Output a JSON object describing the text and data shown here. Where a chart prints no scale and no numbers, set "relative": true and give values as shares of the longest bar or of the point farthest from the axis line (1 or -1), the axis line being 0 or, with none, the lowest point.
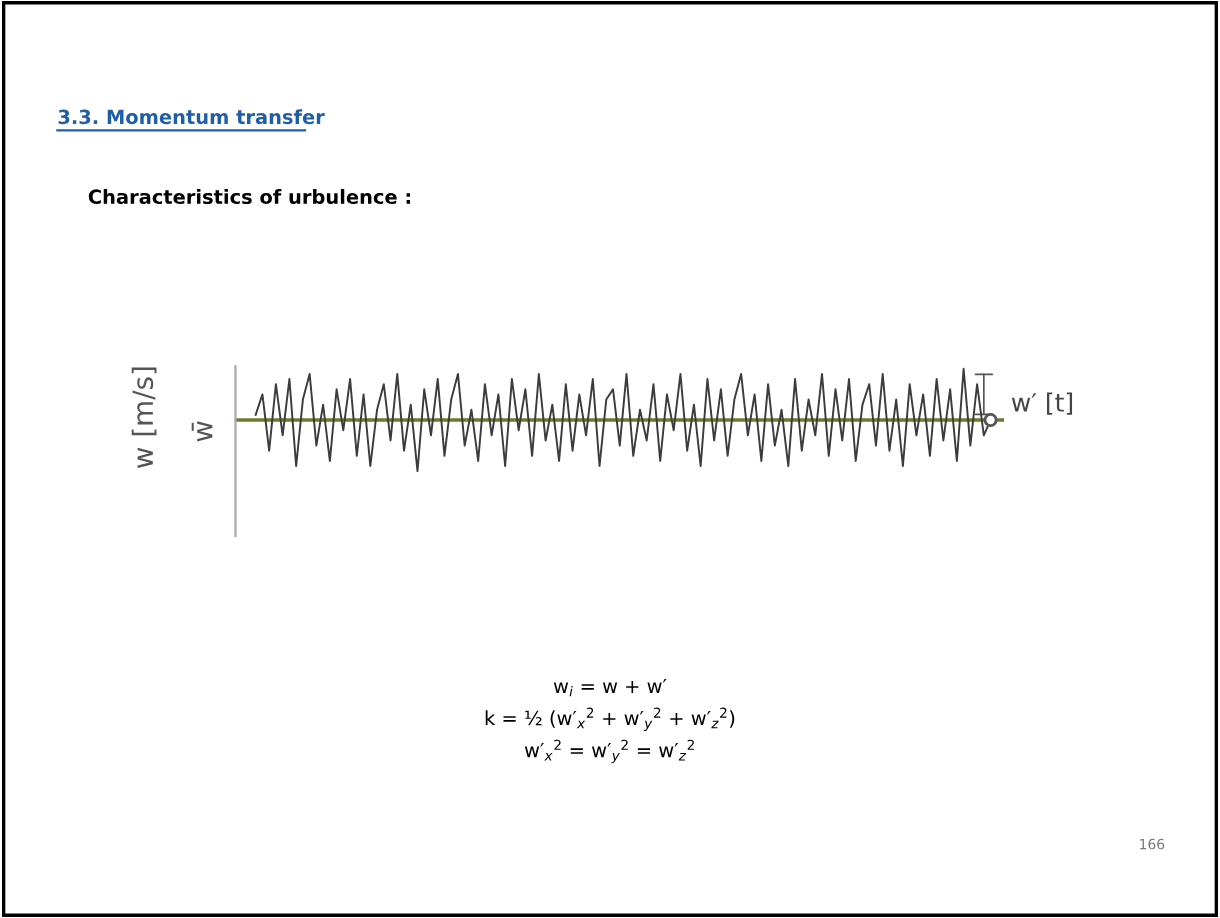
{
  "chart_data": {
    "type": "line",
    "relative": true,
    "title": "3.3. Momentum transfer",
    "subtitle": "Characteristics of urbulence :",
    "ylabel": "w [m/s]",
    "categories": [
      null,
      null,
      null,
      null,
      null,
      null,
      null,
      null,
      null,
      null,
      null,
      null,
      null,
      null,
      null,
      null,
      null,
      null,
      null,
      null,
      null,
      null,
      null,
      null,
      null,
      null,
      null,
      null,
      null,
      null,
      null,
      null,
      null,
      null,
      null,
      null,
      null,
      null,
      null,
      null,
      null,
      null,
      null,
      null,
      null,
      null,
      null,
      null,
      null,
      null,
      null,
      null,
      null,
      null,
      null,
      null,
      null,
      null,
      null,
      null,
      null,
      null,
      null,
      null,
      null,
      null,
      null,
      null,
      null,
      null,
      null,
      null,
      null,
      null,
      null,
      null,
      null,
      null,
      null,
      null,
      null,
      null,
      null,
      null,
      null,
      null,
      null,
      null,
      null,
      null,
      null,
      null,
      null,
      null,
      null,
      null,
      null,
      null,
      null,
      null,
      null,
      null,
      null,
      null,
      null,
      null,
      null,
      null,
      null,
      null
    ],
    "series": [
      {
        "color": "#3c3c3c",
        "values": [
          0.1,
          0.5,
          -0.6,
          0.7,
          -0.3,
          0.8,
          -0.9,
          0.4,
          0.9,
          -0.5,
          0.3,
          -0.8,
          0.6,
          -0.2,
          0.8,
          -0.7,
          0.5,
          -0.9,
          0.2,
          0.7,
          -0.4,
          0.9,
          -0.6,
          0.3,
          -1.0,
          0.6,
          -0.3,
          0.8,
          -0.7,
          0.4,
          0.9,
          -0.5,
          0.2,
          -0.8,
          0.7,
          -0.3,
          0.5,
          -0.9,
          0.8,
          -0.2,
          0.6,
          -0.7,
          0.9,
          -0.4,
          0.3,
          -0.8,
          0.7,
          -0.6,
          0.5,
          -0.3,
          0.8,
          -0.9,
          0.4,
          0.6,
          -0.5,
          0.9,
          -0.7,
          0.2,
          -0.4,
          0.7,
          -0.8,
          0.5,
          -0.2,
          0.9,
          -0.6,
          0.3,
          -0.9,
          0.8,
          -0.4,
          0.6,
          -0.7,
          0.4,
          0.9,
          -0.3,
          0.5,
          -0.8,
          0.7,
          -0.5,
          0.2,
          -0.9,
          0.8,
          -0.6,
          0.4,
          -0.3,
          0.9,
          -0.7,
          0.6,
          -0.4,
          0.8,
          -0.8,
          0.3,
          0.7,
          -0.5,
          0.9,
          -0.6,
          0.4,
          -0.9,
          0.7,
          -0.3,
          0.5,
          -0.7,
          0.8,
          -0.4,
          0.6,
          -0.8,
          1.0,
          -0.5,
          0.7,
          -0.3,
          0.0
        ]
      }
    ],
    "ref_lines": [
      {
        "axis": "y",
        "value": 0,
        "label": "w̄",
        "color": "#6b7a2c"
      }
    ],
    "annotations": [
      "w′ [t]",
      "w$_{i}$ = w + w′",
      "k = ½ (w′$_{x}$$^{2}$ + w′$_{y}$$^{2}$ + w′$_{z}$$^{2}$)",
      "w′$_{x}$$^{2}$ = w′$_{y}$$^{2}$ = w′$_{z}$$^{2}$",
      "166"
    ]
  }
}
